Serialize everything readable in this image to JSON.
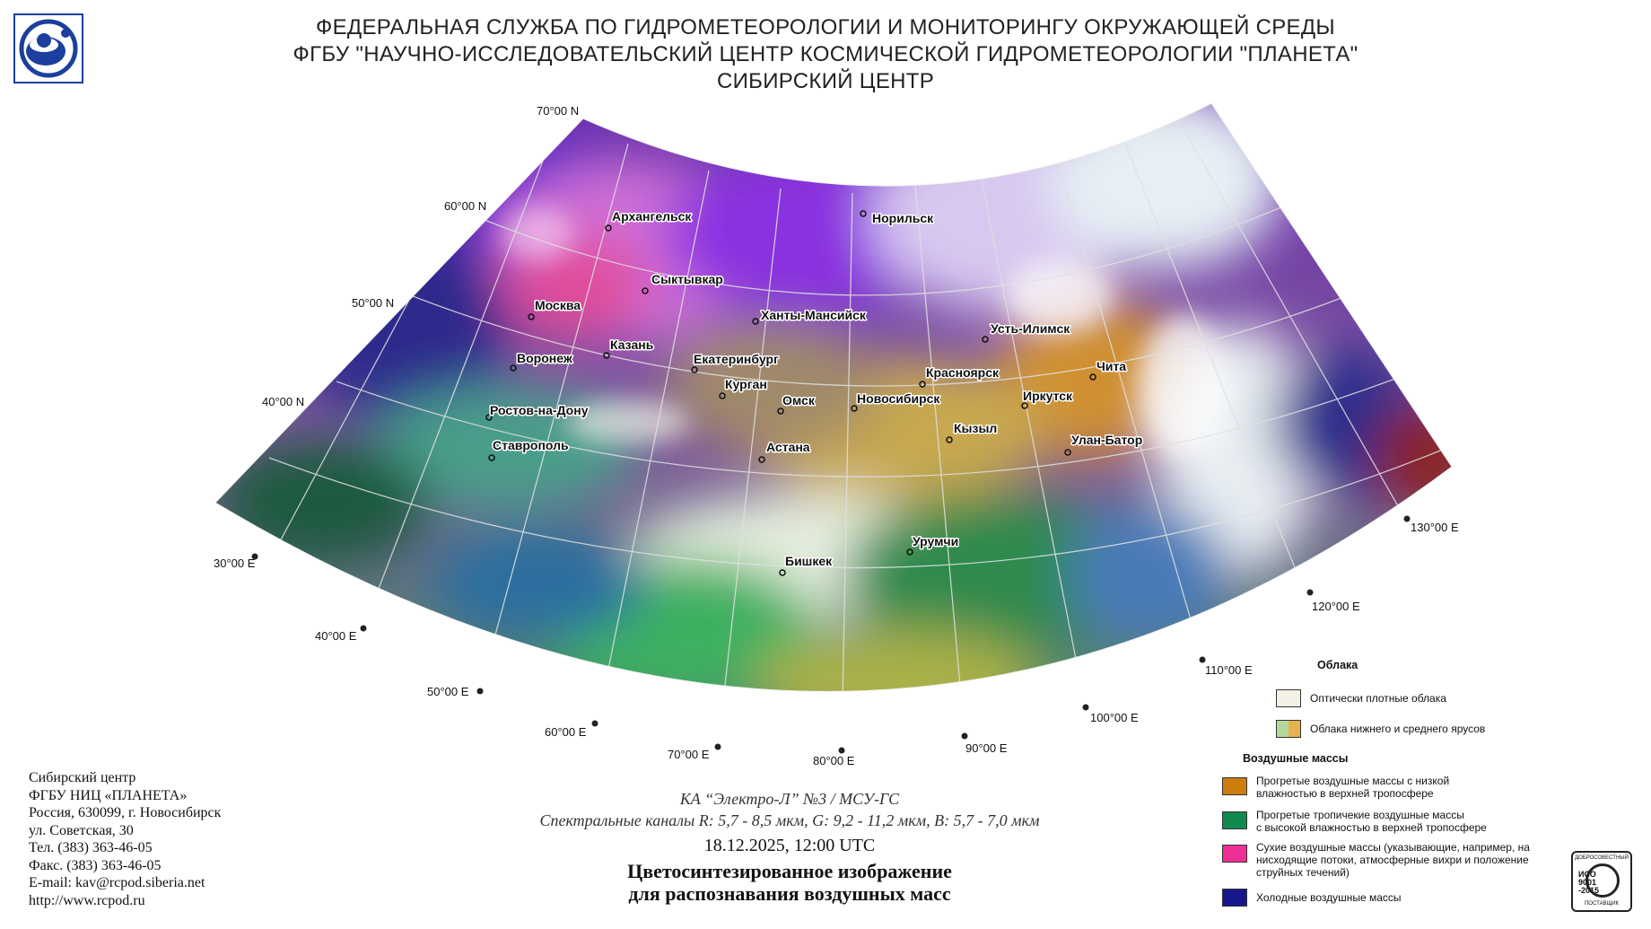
{
  "header": {
    "line1": "ФЕДЕРАЛЬНАЯ СЛУЖБА ПО ГИДРОМЕТЕОРОЛОГИИ И МОНИТОРИНГУ ОКРУЖАЮЩЕЙ СРЕДЫ",
    "line2": "ФГБУ \"НАУЧНО-ИССЛЕДОВАТЕЛЬСКИЙ ЦЕНТР КОСМИЧЕСКОЙ ГИДРОМЕТЕОРОЛОГИИ \"ПЛАНЕТА\"",
    "line3": "СИБИРСКИЙ ЦЕНТР"
  },
  "logo": {
    "icon": "planeta-logo",
    "color": "#1c3f9e"
  },
  "map": {
    "latitude_labels": [
      "70°00 N",
      "60°00 N",
      "50°00 N",
      "40°00 N"
    ],
    "longitude_labels": [
      "30°00 E",
      "40°00 E",
      "50°00 E",
      "60°00 E",
      "70°00 E",
      "80°00 E",
      "90°00 E",
      "100°00 E",
      "110°00 E",
      "120°00 E",
      "130°00 E"
    ],
    "cities": [
      {
        "name": "Архангельск"
      },
      {
        "name": "Норильск"
      },
      {
        "name": "Сыктывкар"
      },
      {
        "name": "Москва"
      },
      {
        "name": "Ханты-Мансийск"
      },
      {
        "name": "Казань"
      },
      {
        "name": "Усть-Илимск"
      },
      {
        "name": "Воронеж"
      },
      {
        "name": "Екатеринбург"
      },
      {
        "name": "Красноярск"
      },
      {
        "name": "Чита"
      },
      {
        "name": "Курган"
      },
      {
        "name": "Иркутск"
      },
      {
        "name": "Омск"
      },
      {
        "name": "Новосибирск"
      },
      {
        "name": "Ростов-на-Дону"
      },
      {
        "name": "Кызыл"
      },
      {
        "name": "Улан-Батор"
      },
      {
        "name": "Ставрополь"
      },
      {
        "name": "Астана"
      },
      {
        "name": "Урумчи"
      },
      {
        "name": "Бишкек"
      }
    ]
  },
  "caption": {
    "satellite": "КА “Электро-Л” №3 / МСУ-ГС",
    "channels": "Спектральные каналы R: 5,7 - 8,5 мкм, G: 9,2 - 11,2 мкм, B: 5,7 - 7,0 мкм",
    "datetime": "18.12.2025, 12:00 UTC",
    "title1": "Цветосинтезированное изображение",
    "title2": "для распознавания воздушных масс"
  },
  "contacts": {
    "lines": [
      "Сибирский центр",
      "ФГБУ НИЦ «ПЛАНЕТА»",
      "Россия, 630099, г. Новосибирск",
      "ул. Советская, 30",
      "Тел. (383) 363-46-05",
      "Факс. (383) 363-46-05",
      "E-mail: kav@rcpod.siberia.net",
      "http://www.rcpod.ru"
    ]
  },
  "legend": {
    "clouds_header": "Облака",
    "clouds": [
      {
        "label": "Оптически плотные облака",
        "colors": [
          "#f4f1e4"
        ]
      },
      {
        "label": "Облака нижнего и среднего ярусов",
        "colors": [
          "#b5d79a",
          "#e6b251"
        ]
      }
    ],
    "air_header": "Воздушные массы",
    "air": [
      {
        "label1": "Прогретые воздушные массы с низкой",
        "label2": "влажностью в верхней тропосфере",
        "label3": "",
        "color": "#cc7d0e"
      },
      {
        "label1": "Прогретые тропичекие воздушные массы",
        "label2": "с высокой влажностью в верхней тропосфере",
        "label3": "",
        "color": "#0f8a4f"
      },
      {
        "label1": "Сухие воздушные массы (указывающие, например, на",
        "label2": "нисходящие потоки, атмосферные вихри и положение",
        "label3": "струйных течений)",
        "color": "#ee2f95"
      },
      {
        "label1": "Холодные воздушные массы",
        "label2": "",
        "label3": "",
        "color": "#17178c"
      }
    ]
  },
  "iso_badge": {
    "top": "ДОБРОСОВЕСТНЫЙ",
    "l1": "ИСО",
    "l2": "9001",
    "l3": "-2015",
    "bottom": "ПОСТАВЩИК"
  }
}
